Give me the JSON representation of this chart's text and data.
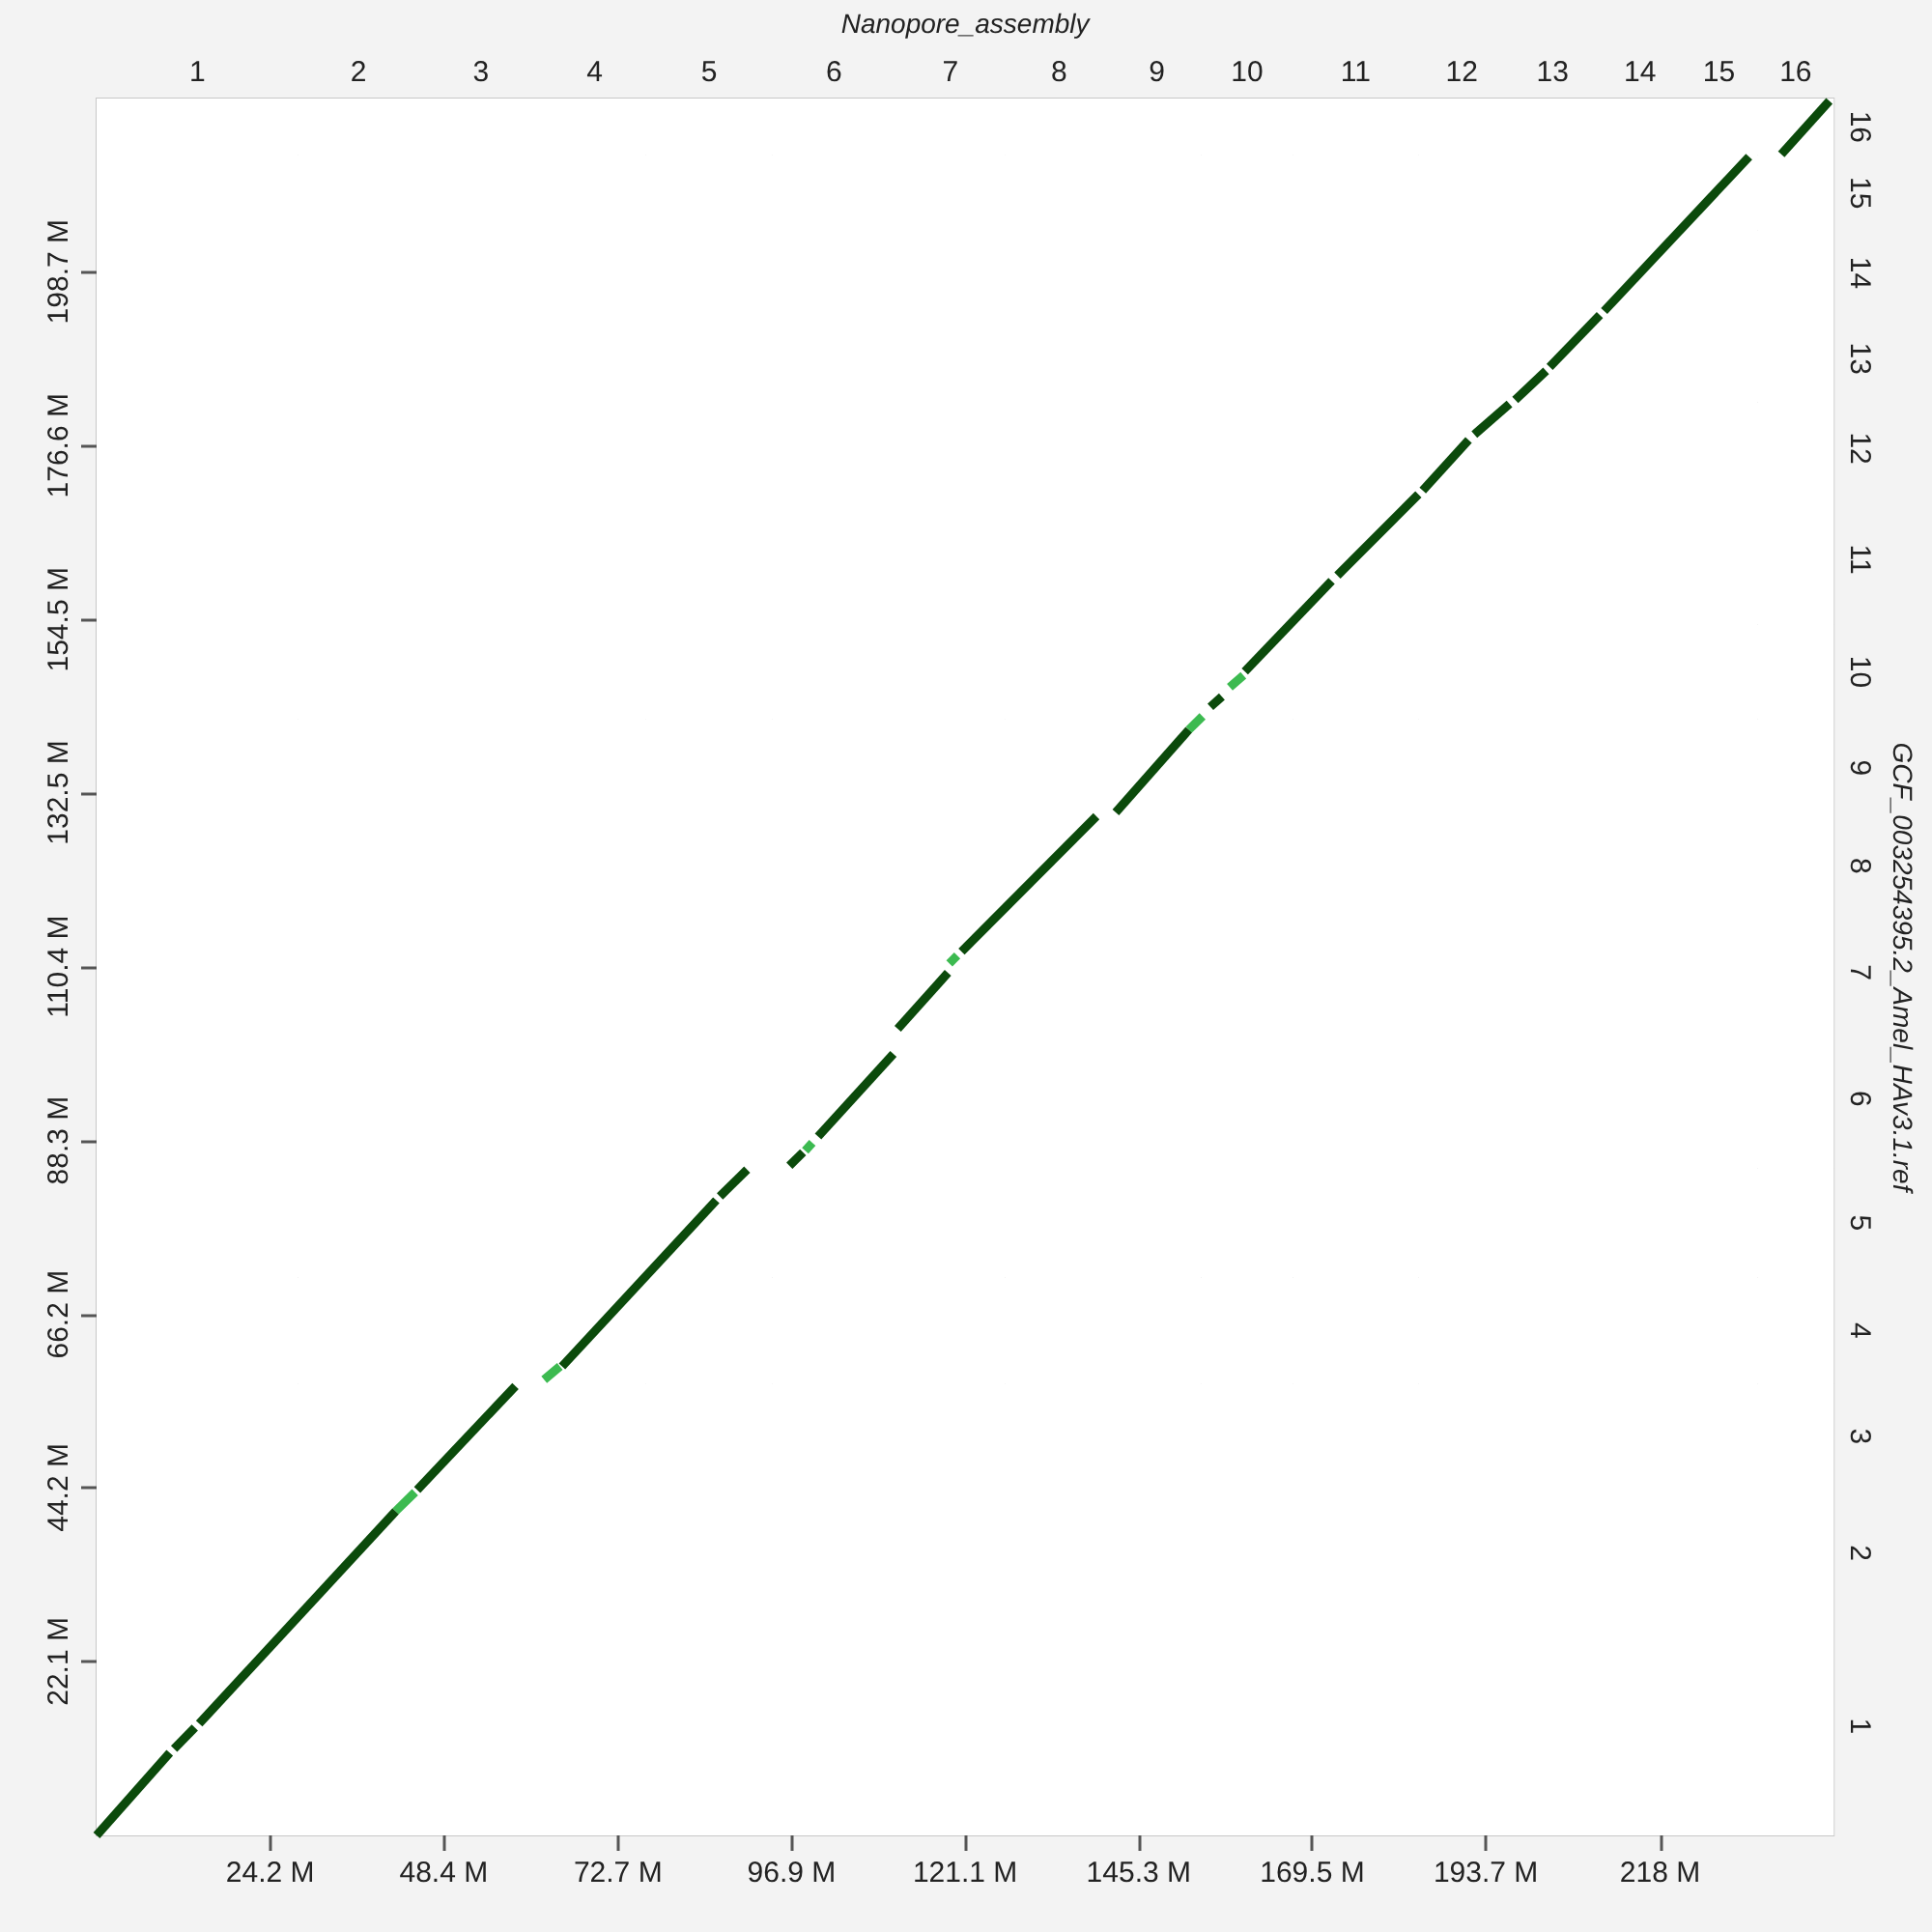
{
  "chart_data": {
    "type": "line",
    "x2label": "Nanopore_assembly",
    "y2label": "GCF_003254395.2_Amel_HAv3.1.ref",
    "xlim": [
      0,
      242.2
    ],
    "ylim": [
      0,
      220.7
    ],
    "bands": [
      {
        "axis": "x",
        "from": 0,
        "to": 28.1,
        "label": "1",
        "color": "#ffffff"
      },
      {
        "axis": "x",
        "from": 28.1,
        "to": 44.9,
        "label": "2"
      },
      {
        "axis": "x",
        "from": 44.9,
        "to": 62.3,
        "label": "3"
      },
      {
        "axis": "x",
        "from": 62.3,
        "to": 76.6,
        "label": "4"
      },
      {
        "axis": "x",
        "from": 76.6,
        "to": 94.2,
        "label": "5"
      },
      {
        "axis": "x",
        "from": 94.2,
        "to": 111.4,
        "label": "6"
      },
      {
        "axis": "x",
        "from": 111.4,
        "to": 126.7,
        "label": "7"
      },
      {
        "axis": "x",
        "from": 126.7,
        "to": 141.7,
        "label": "8"
      },
      {
        "axis": "x",
        "from": 141.7,
        "to": 154.0,
        "label": "9"
      },
      {
        "axis": "x",
        "from": 154.0,
        "to": 166.8,
        "label": "10"
      },
      {
        "axis": "x",
        "from": 166.8,
        "to": 184.3,
        "label": "11"
      },
      {
        "axis": "x",
        "from": 184.3,
        "to": 196.4,
        "label": "12"
      },
      {
        "axis": "x",
        "from": 196.4,
        "to": 209.6,
        "label": "13"
      },
      {
        "axis": "x",
        "from": 209.6,
        "to": 220.8,
        "label": "14"
      },
      {
        "axis": "x",
        "from": 220.8,
        "to": 231.6,
        "label": "15"
      },
      {
        "axis": "x",
        "from": 231.6,
        "to": 242.2,
        "label": "16"
      },
      {
        "axis": "y",
        "from": 0,
        "to": 27.8,
        "label": "1"
      },
      {
        "axis": "y",
        "from": 27.8,
        "to": 44.0,
        "label": "2"
      },
      {
        "axis": "y",
        "from": 44.0,
        "to": 57.4,
        "label": "3"
      },
      {
        "axis": "y",
        "from": 57.4,
        "to": 70.9,
        "label": "4"
      },
      {
        "axis": "y",
        "from": 70.9,
        "to": 84.8,
        "label": "5"
      },
      {
        "axis": "y",
        "from": 84.8,
        "to": 102.4,
        "label": "6"
      },
      {
        "axis": "y",
        "from": 102.4,
        "to": 116.9,
        "label": "7"
      },
      {
        "axis": "y",
        "from": 116.9,
        "to": 129.5,
        "label": "8"
      },
      {
        "axis": "y",
        "from": 129.5,
        "to": 141.8,
        "label": "9"
      },
      {
        "axis": "y",
        "from": 141.8,
        "to": 153.9,
        "label": "10"
      },
      {
        "axis": "y",
        "from": 153.9,
        "to": 170.4,
        "label": "11"
      },
      {
        "axis": "y",
        "from": 170.4,
        "to": 182.1,
        "label": "12"
      },
      {
        "axis": "y",
        "from": 182.1,
        "to": 193.2,
        "label": "13"
      },
      {
        "axis": "y",
        "from": 193.2,
        "to": 203.9,
        "label": "14"
      },
      {
        "axis": "y",
        "from": 203.9,
        "to": 213.5,
        "label": "15"
      },
      {
        "axis": "y",
        "from": 213.5,
        "to": 220.7,
        "label": "16"
      }
    ],
    "xticks": [
      {
        "value": 24.2,
        "label": "24.2 M"
      },
      {
        "value": 48.4,
        "label": "48.4 M"
      },
      {
        "value": 72.7,
        "label": "72.7 M"
      },
      {
        "value": 96.9,
        "label": "96.9 M"
      },
      {
        "value": 121.1,
        "label": "121.1 M"
      },
      {
        "value": 145.3,
        "label": "145.3 M"
      },
      {
        "value": 169.5,
        "label": "169.5 M"
      },
      {
        "value": 193.7,
        "label": "193.7 M"
      },
      {
        "value": 218,
        "label": "218 M"
      }
    ],
    "yticks": [
      {
        "value": 22.1,
        "label": "22.1 M"
      },
      {
        "value": 44.2,
        "label": "44.2 M"
      },
      {
        "value": 66.2,
        "label": "66.2 M"
      },
      {
        "value": 88.3,
        "label": "88.3 M"
      },
      {
        "value": 110.4,
        "label": "110.4 M"
      },
      {
        "value": 132.5,
        "label": "132.5 M"
      },
      {
        "value": 154.5,
        "label": "154.5 M"
      },
      {
        "value": 176.6,
        "label": "176.6 M"
      },
      {
        "value": 198.7,
        "label": "198.7 M"
      }
    ],
    "marker": "none",
    "line_style": "solid",
    "series": [
      {
        "color": "#0b4a0b",
        "x": [
          0,
          10.2
        ],
        "values": [
          0,
          10.5
        ]
      },
      {
        "color": "#0b4a0b",
        "x": [
          10.8,
          13.7
        ],
        "values": [
          11.0,
          13.7
        ]
      },
      {
        "color": "#0b4a0b",
        "x": [
          14.3,
          41.7
        ],
        "values": [
          14.2,
          41.2
        ]
      },
      {
        "color": "#3cba50",
        "x": [
          41.7,
          44.4
        ],
        "values": [
          41.2,
          43.6
        ]
      },
      {
        "color": "#0b4a0b",
        "x": [
          44.7,
          58.4
        ],
        "values": [
          43.9,
          57.1
        ]
      },
      {
        "color": "#3cba50",
        "x": [
          62.4,
          64.6
        ],
        "values": [
          57.9,
          59.6
        ]
      },
      {
        "color": "#0b4a0b",
        "x": [
          64.9,
          86.4
        ],
        "values": [
          59.6,
          80.7
        ]
      },
      {
        "color": "#0b4a0b",
        "x": [
          86.9,
          90.7
        ],
        "values": [
          81.2,
          84.6
        ]
      },
      {
        "color": "#0b4a0b",
        "x": [
          96.6,
          98.5
        ],
        "values": [
          85.1,
          86.8
        ]
      },
      {
        "color": "#3cba50",
        "x": [
          98.8,
          99.8
        ],
        "values": [
          87.0,
          88.0
        ]
      },
      {
        "color": "#0b4a0b",
        "x": [
          100.6,
          111.1
        ],
        "values": [
          88.8,
          99.3
        ]
      },
      {
        "color": "#0b4a0b",
        "x": [
          111.7,
          118.7
        ],
        "values": [
          102.5,
          109.6
        ]
      },
      {
        "color": "#3cba50",
        "x": [
          118.9,
          120.0
        ],
        "values": [
          110.8,
          111.8
        ]
      },
      {
        "color": "#0b4a0b",
        "x": [
          120.6,
          139.4
        ],
        "values": [
          112.3,
          129.5
        ]
      },
      {
        "color": "#0b4a0b",
        "x": [
          142.1,
          152.3
        ],
        "values": [
          130.0,
          140.5
        ]
      },
      {
        "color": "#3cba50",
        "x": [
          152.3,
          154.2
        ],
        "values": [
          140.5,
          142.2
        ]
      },
      {
        "color": "#0b4a0b",
        "x": [
          155.3,
          156.9
        ],
        "values": [
          143.4,
          144.7
        ]
      },
      {
        "color": "#3cba50",
        "x": [
          158.0,
          159.9
        ],
        "values": [
          145.9,
          147.4
        ]
      },
      {
        "color": "#0b4a0b",
        "x": [
          160.1,
          172.2
        ],
        "values": [
          147.9,
          159.4
        ]
      },
      {
        "color": "#0b4a0b",
        "x": [
          173.0,
          184.3
        ],
        "values": [
          160.1,
          170.4
        ]
      },
      {
        "color": "#0b4a0b",
        "x": [
          184.9,
          191.3
        ],
        "values": [
          170.9,
          177.3
        ]
      },
      {
        "color": "#0b4a0b",
        "x": [
          192.1,
          197.0
        ],
        "values": [
          178.0,
          181.9
        ]
      },
      {
        "color": "#0b4a0b",
        "x": [
          197.8,
          202.1
        ],
        "values": [
          182.4,
          186.1
        ]
      },
      {
        "color": "#0b4a0b",
        "x": [
          202.6,
          209.6
        ],
        "values": [
          186.6,
          193.2
        ]
      },
      {
        "color": "#0b4a0b",
        "x": [
          210.2,
          230.4
        ],
        "values": [
          193.7,
          213.3
        ]
      },
      {
        "color": "#0b4a0b",
        "x": [
          234.9,
          241.6
        ],
        "values": [
          213.6,
          220.4
        ]
      }
    ]
  }
}
